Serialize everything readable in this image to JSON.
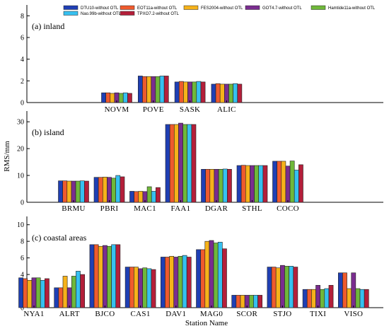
{
  "chart_data": {
    "type": "bar",
    "ylabel": "RMS/mm",
    "xlabel": "Station Name",
    "colors": [
      "#1f3fb4",
      "#ef5a2d",
      "#f6b21a",
      "#7a2d8f",
      "#6fb83a",
      "#36c0f0",
      "#b41f3a"
    ],
    "series_names": [
      "DTU10-without OTL",
      "EOT11a-without OTL",
      "FES2004-without OTL",
      "GOT4.7-without OTL",
      "Hamtide11a-without OTL",
      "Nao.99b-without OTL",
      "TPXO7.2-without OTL"
    ],
    "panels": [
      {
        "label": "(a) inland",
        "ylim": [
          0,
          9
        ],
        "yticks": [
          "0",
          "2",
          "4",
          "6",
          "8"
        ],
        "categories": [
          "NOVM",
          "POVE",
          "SASK",
          "ALIC"
        ],
        "values": [
          [
            0.9,
            0.9,
            0.85,
            0.9,
            0.85,
            0.9,
            0.85
          ],
          [
            2.45,
            2.4,
            2.4,
            2.4,
            2.4,
            2.45,
            2.45
          ],
          [
            1.9,
            1.95,
            1.9,
            1.9,
            1.9,
            1.95,
            1.9
          ],
          [
            1.7,
            1.75,
            1.7,
            1.7,
            1.7,
            1.75,
            1.7
          ]
        ]
      },
      {
        "label": "(b) island",
        "ylim": [
          0,
          34
        ],
        "yticks": [
          "0",
          "10",
          "20",
          "30"
        ],
        "categories": [
          "BRMU",
          "PBRI",
          "MAC1",
          "FAA1",
          "DGAR",
          "STHL",
          "COCO"
        ],
        "values": [
          [
            8.0,
            8.0,
            7.9,
            7.9,
            7.9,
            8.0,
            7.9
          ],
          [
            9.3,
            9.3,
            9.4,
            9.3,
            9.0,
            10.0,
            9.5
          ],
          [
            4.1,
            4.0,
            4.1,
            4.0,
            5.8,
            4.1,
            5.5
          ],
          [
            29.0,
            29.0,
            29.0,
            29.5,
            29.0,
            29.0,
            29.0
          ],
          [
            12.3,
            12.3,
            12.3,
            12.3,
            12.3,
            12.4,
            12.3
          ],
          [
            13.7,
            13.8,
            13.7,
            13.7,
            13.7,
            13.7,
            13.7
          ],
          [
            15.3,
            15.3,
            15.3,
            13.5,
            15.4,
            12.0,
            14.0
          ]
        ]
      },
      {
        "label": "(c) coastal areas",
        "ylim": [
          0,
          11
        ],
        "yticks": [
          "0",
          "2",
          "4",
          "6",
          "8",
          "10"
        ],
        "categories": [
          "NYA1",
          "ALRT",
          "BJCO",
          "CAS1",
          "DAV1",
          "MAG0",
          "SCOR",
          "STJO",
          "TIXI",
          "VISO"
        ],
        "values": [
          [
            3.6,
            3.5,
            3.3,
            3.6,
            3.6,
            3.3,
            3.5
          ],
          [
            2.4,
            2.4,
            3.8,
            2.4,
            3.8,
            4.4,
            4.0
          ],
          [
            7.6,
            7.6,
            7.4,
            7.5,
            7.4,
            7.6,
            7.6
          ],
          [
            4.9,
            4.9,
            4.9,
            4.7,
            4.8,
            4.7,
            4.6
          ],
          [
            6.1,
            6.1,
            6.2,
            6.1,
            6.2,
            6.3,
            6.1
          ],
          [
            7.0,
            7.0,
            8.0,
            8.1,
            7.8,
            7.9,
            7.1
          ],
          [
            1.5,
            1.5,
            1.5,
            1.5,
            1.5,
            1.5,
            1.5
          ],
          [
            4.9,
            4.9,
            4.8,
            5.1,
            5.0,
            5.0,
            4.9
          ],
          [
            2.2,
            2.2,
            2.2,
            2.7,
            2.2,
            2.3,
            2.7
          ],
          [
            4.2,
            4.2,
            2.3,
            4.2,
            2.3,
            2.2,
            2.2
          ]
        ]
      }
    ]
  }
}
